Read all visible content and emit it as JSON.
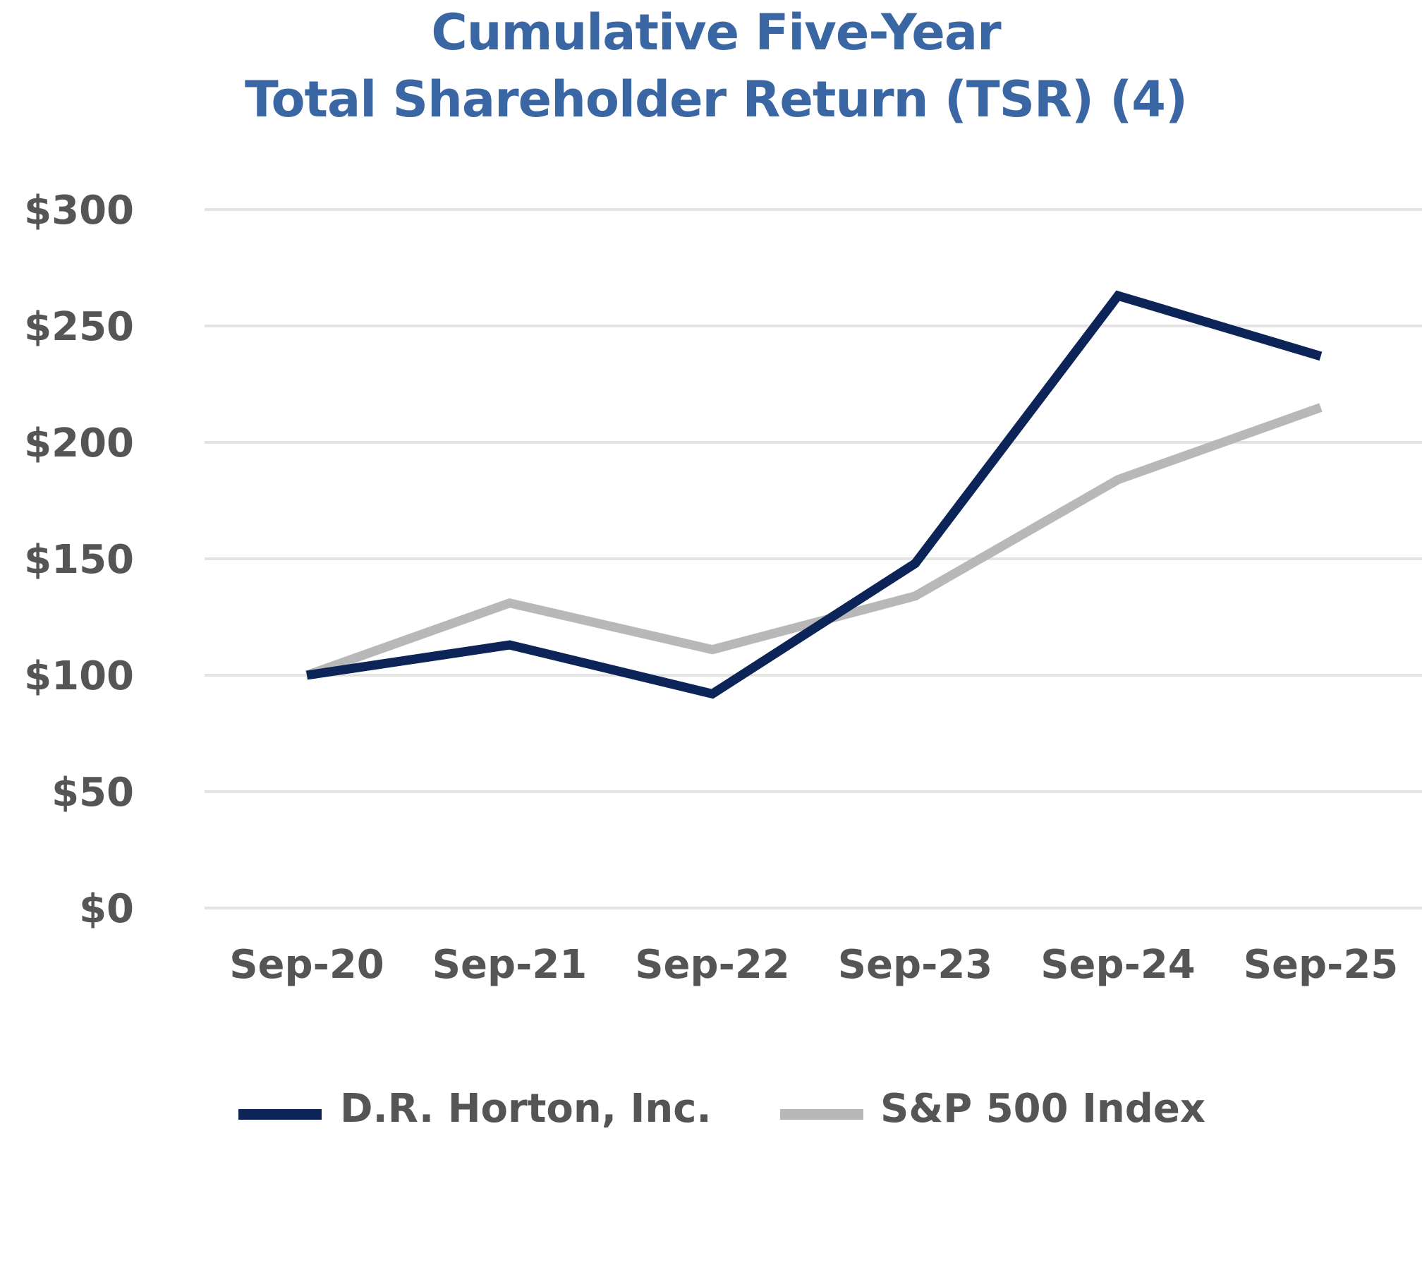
{
  "chart_data": {
    "type": "line",
    "title_lines": [
      "Cumulative Five-Year",
      "Total Shareholder Return (TSR) (4)"
    ],
    "categories": [
      "Sep-20",
      "Sep-21",
      "Sep-22",
      "Sep-23",
      "Sep-24",
      "Sep-25"
    ],
    "y_ticks": [
      "$0",
      "$50",
      "$100",
      "$150",
      "$200",
      "$250",
      "$300"
    ],
    "y_tick_values": [
      0,
      50,
      100,
      150,
      200,
      250,
      300
    ],
    "ylim": [
      0,
      300
    ],
    "grid": true,
    "legend_position": "bottom",
    "series": [
      {
        "name": "D.R. Horton, Inc.",
        "color": "#0d2459",
        "values": [
          100,
          113,
          92,
          148,
          263,
          237
        ]
      },
      {
        "name": "S&P 500 Index",
        "color": "#b8b8b8",
        "values": [
          100,
          131,
          111,
          134,
          184,
          215
        ]
      }
    ],
    "title_color": "#3a66a3",
    "label_color": "#555555",
    "grid_color": "#e3e3e3"
  }
}
